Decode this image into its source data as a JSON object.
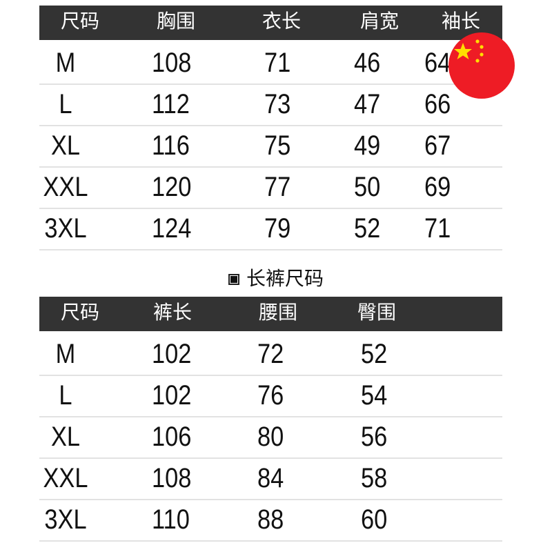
{
  "top_table": {
    "headers": [
      "尺码",
      "胸围",
      "衣长",
      "肩宽",
      "袖长"
    ],
    "rows": [
      [
        "M",
        "108",
        "71",
        "46",
        "64"
      ],
      [
        "L",
        "112",
        "73",
        "47",
        "66"
      ],
      [
        "XL",
        "116",
        "75",
        "49",
        "67"
      ],
      [
        "XXL",
        "120",
        "77",
        "50",
        "69"
      ],
      [
        "3XL",
        "124",
        "79",
        "52",
        "71"
      ]
    ]
  },
  "section_title": "长裤尺码",
  "bottom_table": {
    "headers": [
      "尺码",
      "裤长",
      "腰围",
      "臀围"
    ],
    "rows": [
      [
        "M",
        "102",
        "72",
        "52"
      ],
      [
        "L",
        "102",
        "76",
        "54"
      ],
      [
        "XL",
        "106",
        "80",
        "56"
      ],
      [
        "XXL",
        "108",
        "84",
        "58"
      ],
      [
        "3XL",
        "110",
        "88",
        "60"
      ]
    ]
  },
  "colors": {
    "header_bg": "#333333",
    "flag_red": "#ee1c25",
    "flag_star": "#ffde00"
  },
  "badge_icon": "china-flag-icon"
}
